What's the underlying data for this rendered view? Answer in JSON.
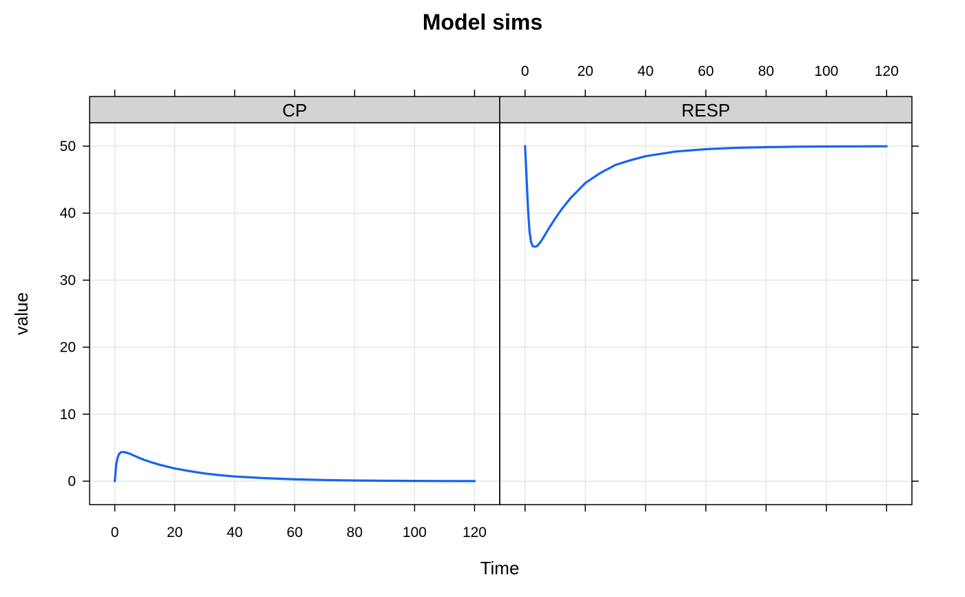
{
  "chart_data": {
    "type": "line",
    "title": "Model sims",
    "xlabel": "Time",
    "ylabel": "value",
    "xlim": [
      -8.4,
      128.4
    ],
    "ylim": [
      -3.5,
      53.5
    ],
    "x_ticks": [
      0,
      20,
      40,
      60,
      80,
      100,
      120
    ],
    "y_ticks": [
      0,
      10,
      20,
      30,
      40,
      50
    ],
    "grid": true,
    "line_color": "#1464F4",
    "grid_color": "#E6E6E6",
    "strip_color": "#D3D3D3",
    "panels": [
      {
        "name": "CP",
        "x": [
          0,
          0.5,
          1,
          1.5,
          2,
          2.5,
          3,
          4,
          5,
          6,
          8,
          10,
          12,
          15,
          20,
          25,
          30,
          35,
          40,
          50,
          60,
          70,
          80,
          90,
          100,
          110,
          120
        ],
        "y": [
          0,
          2.6,
          3.6,
          4.1,
          4.3,
          4.35,
          4.35,
          4.25,
          4.1,
          3.9,
          3.5,
          3.15,
          2.85,
          2.45,
          1.9,
          1.5,
          1.15,
          0.9,
          0.7,
          0.45,
          0.28,
          0.17,
          0.1,
          0.06,
          0.04,
          0.02,
          0.01
        ]
      },
      {
        "name": "RESP",
        "x": [
          0,
          0.5,
          1,
          1.5,
          2,
          2.5,
          3,
          3.5,
          4,
          5,
          6,
          8,
          10,
          12,
          15,
          20,
          25,
          30,
          35,
          40,
          50,
          60,
          70,
          80,
          90,
          100,
          110,
          120
        ],
        "y": [
          50,
          45.5,
          40.5,
          37.2,
          35.7,
          35.1,
          35.0,
          35.0,
          35.1,
          35.6,
          36.3,
          37.8,
          39.2,
          40.5,
          42.2,
          44.5,
          46.0,
          47.2,
          47.9,
          48.5,
          49.2,
          49.55,
          49.75,
          49.85,
          49.92,
          49.95,
          49.97,
          49.98
        ]
      }
    ]
  }
}
